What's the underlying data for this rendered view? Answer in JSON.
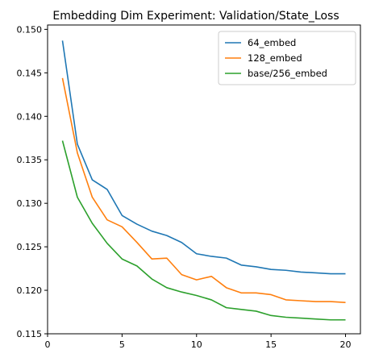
{
  "chart_data": {
    "type": "line",
    "title": "Embedding Dim Experiment: Validation/State_Loss",
    "xlabel": "",
    "ylabel": "",
    "xlim": [
      0,
      21
    ],
    "ylim": [
      0.115,
      0.1505
    ],
    "xticks": [
      0,
      5,
      10,
      15,
      20
    ],
    "yticks": [
      0.115,
      0.12,
      0.125,
      0.13,
      0.135,
      0.14,
      0.145,
      0.15
    ],
    "grid": false,
    "legend_position": "top-right",
    "x": [
      1,
      2,
      3,
      4,
      5,
      6,
      7,
      8,
      9,
      10,
      11,
      12,
      13,
      14,
      15,
      16,
      17,
      18,
      19,
      20
    ],
    "series": [
      {
        "name": "64_embed",
        "color": "#1f77b4",
        "values": [
          0.1487,
          0.1368,
          0.1327,
          0.1316,
          0.1286,
          0.1276,
          0.1268,
          0.1263,
          0.1255,
          0.1242,
          0.1239,
          0.1237,
          0.1229,
          0.1227,
          0.1224,
          0.1223,
          0.1221,
          0.122,
          0.1219,
          0.1219
        ]
      },
      {
        "name": "128_embed",
        "color": "#ff7f0e",
        "values": [
          0.1444,
          0.1358,
          0.1307,
          0.1281,
          0.1273,
          0.1255,
          0.1236,
          0.1237,
          0.1218,
          0.1212,
          0.1216,
          0.1203,
          0.1197,
          0.1197,
          0.1195,
          0.1189,
          0.1188,
          0.1187,
          0.1187,
          0.1186
        ]
      },
      {
        "name": "base/256_embed",
        "color": "#2ca02c",
        "values": [
          0.1372,
          0.1307,
          0.1277,
          0.1254,
          0.1236,
          0.1228,
          0.1213,
          0.1203,
          0.1198,
          0.1194,
          0.1189,
          0.118,
          0.1178,
          0.1176,
          0.1171,
          0.1169,
          0.1168,
          0.1167,
          0.1166,
          0.1166
        ]
      }
    ]
  }
}
